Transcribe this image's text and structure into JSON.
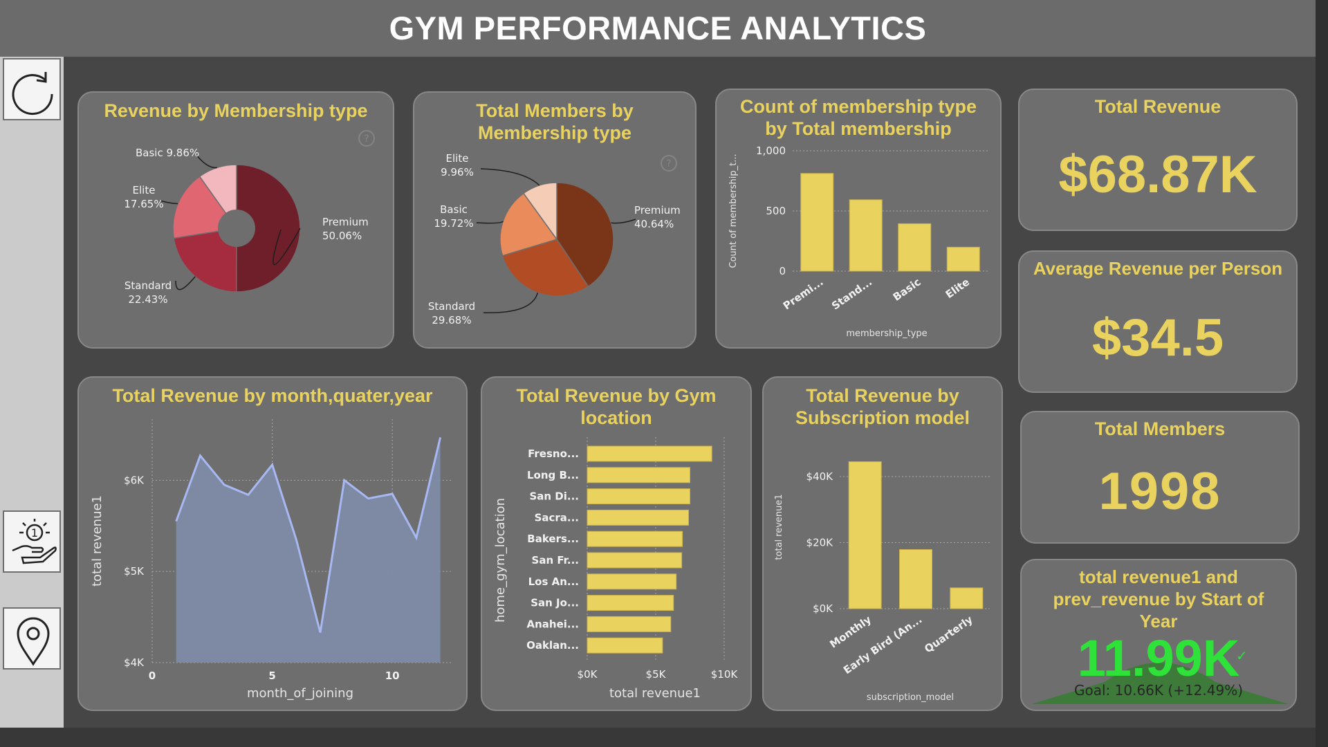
{
  "header": {
    "title": "GYM PERFORMANCE ANALYTICS"
  },
  "nav": [
    {
      "name": "refresh-icon"
    },
    {
      "name": "attendance-icon"
    },
    {
      "name": "location-pin-icon"
    }
  ],
  "colors": {
    "title": "#e9d25e",
    "bar": "#e9d25e",
    "area_fill": "#7e8aa6",
    "area_line": "#a7b8f2",
    "kpi_green": "#2ee23a",
    "goal_fill": "#3e7a3a"
  },
  "kpis": {
    "total_revenue": {
      "title": "Total Revenue",
      "value": "$68.87K"
    },
    "avg_revenue": {
      "title": "Average Revenue per Person",
      "value": "$34.5"
    },
    "total_members": {
      "title": "Total Members",
      "value": "1998"
    },
    "goal": {
      "title": "total revenue1 and prev_revenue by Start of Year",
      "value": "11.99K",
      "goal_text": "Goal: 10.66K (+12.49%)",
      "check": "✓"
    }
  },
  "chart_data": [
    {
      "id": "revenue-by-membership",
      "type": "pie",
      "variant": "donut",
      "title": "Revenue by Membership type",
      "slices": [
        {
          "label": "Premium",
          "pct_label": "50.06%",
          "value": 50.06,
          "color": "#6e1f2a"
        },
        {
          "label": "Standard",
          "pct_label": "22.43%",
          "value": 22.43,
          "color": "#a52b3e"
        },
        {
          "label": "Elite",
          "pct_label": "17.65%",
          "value": 17.65,
          "color": "#e06671"
        },
        {
          "label": "Basic",
          "pct_label": "9.86%",
          "value": 9.86,
          "color": "#f3b8bd"
        }
      ]
    },
    {
      "id": "members-by-membership",
      "type": "pie",
      "title": "Total Members by Membership type",
      "slices": [
        {
          "label": "Premium",
          "pct_label": "40.64%",
          "value": 40.64,
          "color": "#7a3417"
        },
        {
          "label": "Standard",
          "pct_label": "29.68%",
          "value": 29.68,
          "color": "#b24c24"
        },
        {
          "label": "Basic",
          "pct_label": "19.72%",
          "value": 19.72,
          "color": "#ea8b5c"
        },
        {
          "label": "Elite",
          "pct_label": "9.96%",
          "value": 9.96,
          "color": "#f5cdb6"
        }
      ]
    },
    {
      "id": "count-membership",
      "type": "bar",
      "title": "Count of membership type by Total membership",
      "categories": [
        "Premi...",
        "Stand...",
        "Basic",
        "Elite"
      ],
      "values": [
        812,
        593,
        394,
        199
      ],
      "ylabel": "Count of membership_t...",
      "xlabel": "membership_type",
      "ylim": [
        0,
        1000
      ],
      "yticks": [
        0,
        500,
        1000
      ],
      "yticklabels": [
        "0",
        "500",
        "1,000"
      ],
      "grid": true
    },
    {
      "id": "revenue-by-month",
      "type": "area",
      "title": "Total Revenue by month,quater,year",
      "x": [
        1,
        2,
        3,
        4,
        5,
        6,
        7,
        8,
        9,
        10,
        11,
        12
      ],
      "values": [
        5550,
        6270,
        5950,
        5840,
        6170,
        5350,
        4330,
        6000,
        5800,
        5850,
        5370,
        6470
      ],
      "xlabel": "month_of_joining",
      "ylabel": "total revenue1",
      "xlim": [
        0,
        12.5
      ],
      "ylim": [
        4000,
        6670
      ],
      "xticks": [
        0,
        5,
        10
      ],
      "yticks": [
        4000,
        5000,
        6000
      ],
      "yticklabels": [
        "$4K",
        "$5K",
        "$6K"
      ],
      "grid": true
    },
    {
      "id": "revenue-by-location",
      "type": "bar",
      "orientation": "horizontal",
      "title": "Total Revenue by Gym location",
      "categories": [
        "Fresno...",
        "Long B...",
        "San Di...",
        "Sacra...",
        "Bakers...",
        "San Fr...",
        "Los An...",
        "San Jo...",
        "Anahei...",
        "Oaklan..."
      ],
      "values": [
        9100,
        7500,
        7500,
        7400,
        6950,
        6900,
        6500,
        6300,
        6100,
        5500
      ],
      "xlabel": "total revenue1",
      "ylabel": "home_gym_location",
      "xlim": [
        0,
        10000
      ],
      "xticks": [
        0,
        5000,
        10000
      ],
      "xticklabels": [
        "$0K",
        "$5K",
        "$10K"
      ],
      "grid": true
    },
    {
      "id": "revenue-by-subscription",
      "type": "bar",
      "title": "Total Revenue by Subscription model",
      "categories": [
        "Monthly",
        "Early Bird (An...",
        "Quarterly"
      ],
      "values": [
        44500,
        17900,
        6300
      ],
      "xlabel": "subscription_model",
      "ylabel": "total revenue1",
      "ylim": [
        0,
        49000
      ],
      "yticks": [
        0,
        20000,
        40000
      ],
      "yticklabels": [
        "$0K",
        "$20K",
        "$40K"
      ],
      "grid": true
    }
  ]
}
